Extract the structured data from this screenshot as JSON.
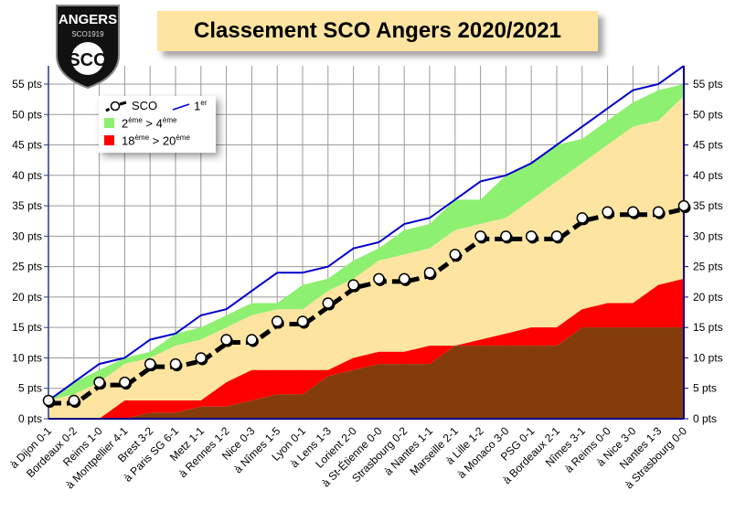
{
  "logo": {
    "text_top": "ANGERS",
    "text_mid": "SCO1919",
    "text_big": "SCO"
  },
  "chart_data": {
    "type": "area",
    "title": "Classement SCO Angers 2020/2021",
    "ylabel": "",
    "xlabel": "",
    "ylim": [
      0,
      58
    ],
    "y_ticks": [
      0,
      5,
      10,
      15,
      20,
      25,
      30,
      35,
      40,
      45,
      50,
      55
    ],
    "y_tick_suffix": " pts",
    "grid": true,
    "legend_placement": "top-left",
    "categories": [
      "à Dijon 0-1",
      "Bordeaux 0-2",
      "Reims 1-0",
      "à Montpellier 4-1",
      "Brest 3-2",
      "à Paris SG 6-1",
      "Metz 1-1",
      "à Rennes 1-2",
      "Nice 0-3",
      "à Nîmes 1-5",
      "Lyon 0-1",
      "à Lens 1-3",
      "Lorient 2-0",
      "à St-Étienne 0-0",
      "Strasbourg 0-2",
      "à Nantes 1-1",
      "Marseille 2-1",
      "à Lille 1-2",
      "à Monaco 3-0",
      "PSG 0-1",
      "à Bordeaux 2-1",
      "Nîmes 3-1",
      "à Reims 0-0",
      "à Nice 3-0",
      "Nantes 1-3",
      "à Strasbourg 0-0"
    ],
    "series": [
      {
        "name": "SCO",
        "color": "#000000",
        "values": [
          3,
          3,
          6,
          6,
          9,
          9,
          10,
          13,
          13,
          16,
          16,
          19,
          22,
          23,
          23,
          24,
          27,
          30,
          30,
          30,
          30,
          33,
          34,
          34,
          34,
          35
        ]
      },
      {
        "name": "1er",
        "color": "#0000cc",
        "values": [
          3,
          6,
          9,
          10,
          13,
          14,
          17,
          18,
          21,
          24,
          24,
          25,
          28,
          29,
          32,
          33,
          36,
          39,
          40,
          42,
          45,
          48,
          51,
          54,
          55,
          58
        ]
      },
      {
        "name": "2ème",
        "color": "#8ef070",
        "values": [
          3,
          6,
          8,
          10,
          11,
          14,
          15,
          17,
          19,
          19,
          22,
          23,
          26,
          28,
          31,
          32,
          36,
          36,
          40,
          42,
          45,
          46,
          49,
          52,
          54,
          55
        ]
      },
      {
        "name": "4ème",
        "color": "#fde4a0",
        "values": [
          3,
          4,
          6,
          9,
          10,
          12,
          13,
          15,
          17,
          18,
          18,
          21,
          23,
          26,
          27,
          28,
          31,
          32,
          33,
          36,
          39,
          42,
          45,
          48,
          49,
          53
        ]
      },
      {
        "name": "18ème",
        "color": "#ff0000",
        "values": [
          0,
          0,
          0,
          3,
          3,
          3,
          3,
          6,
          8,
          8,
          8,
          8,
          10,
          11,
          11,
          12,
          12,
          13,
          14,
          15,
          15,
          18,
          19,
          19,
          22,
          23
        ]
      },
      {
        "name": "20ème",
        "color": "#843c0c",
        "values": [
          0,
          0,
          0,
          0,
          1,
          1,
          2,
          2,
          3,
          4,
          4,
          7,
          8,
          9,
          9,
          9,
          12,
          12,
          12,
          12,
          12,
          15,
          15,
          15,
          15,
          15
        ]
      }
    ]
  },
  "legend": {
    "sco": "SCO",
    "first": "1",
    "first_sup": "er",
    "green_a": "2",
    "green_a_sup": "ème",
    "gt": ">",
    "green_b": "4",
    "green_b_sup": "ème",
    "red_a": "18",
    "red_a_sup": "ème",
    "gt2": ">",
    "red_b": "20",
    "red_b_sup": "ème"
  }
}
